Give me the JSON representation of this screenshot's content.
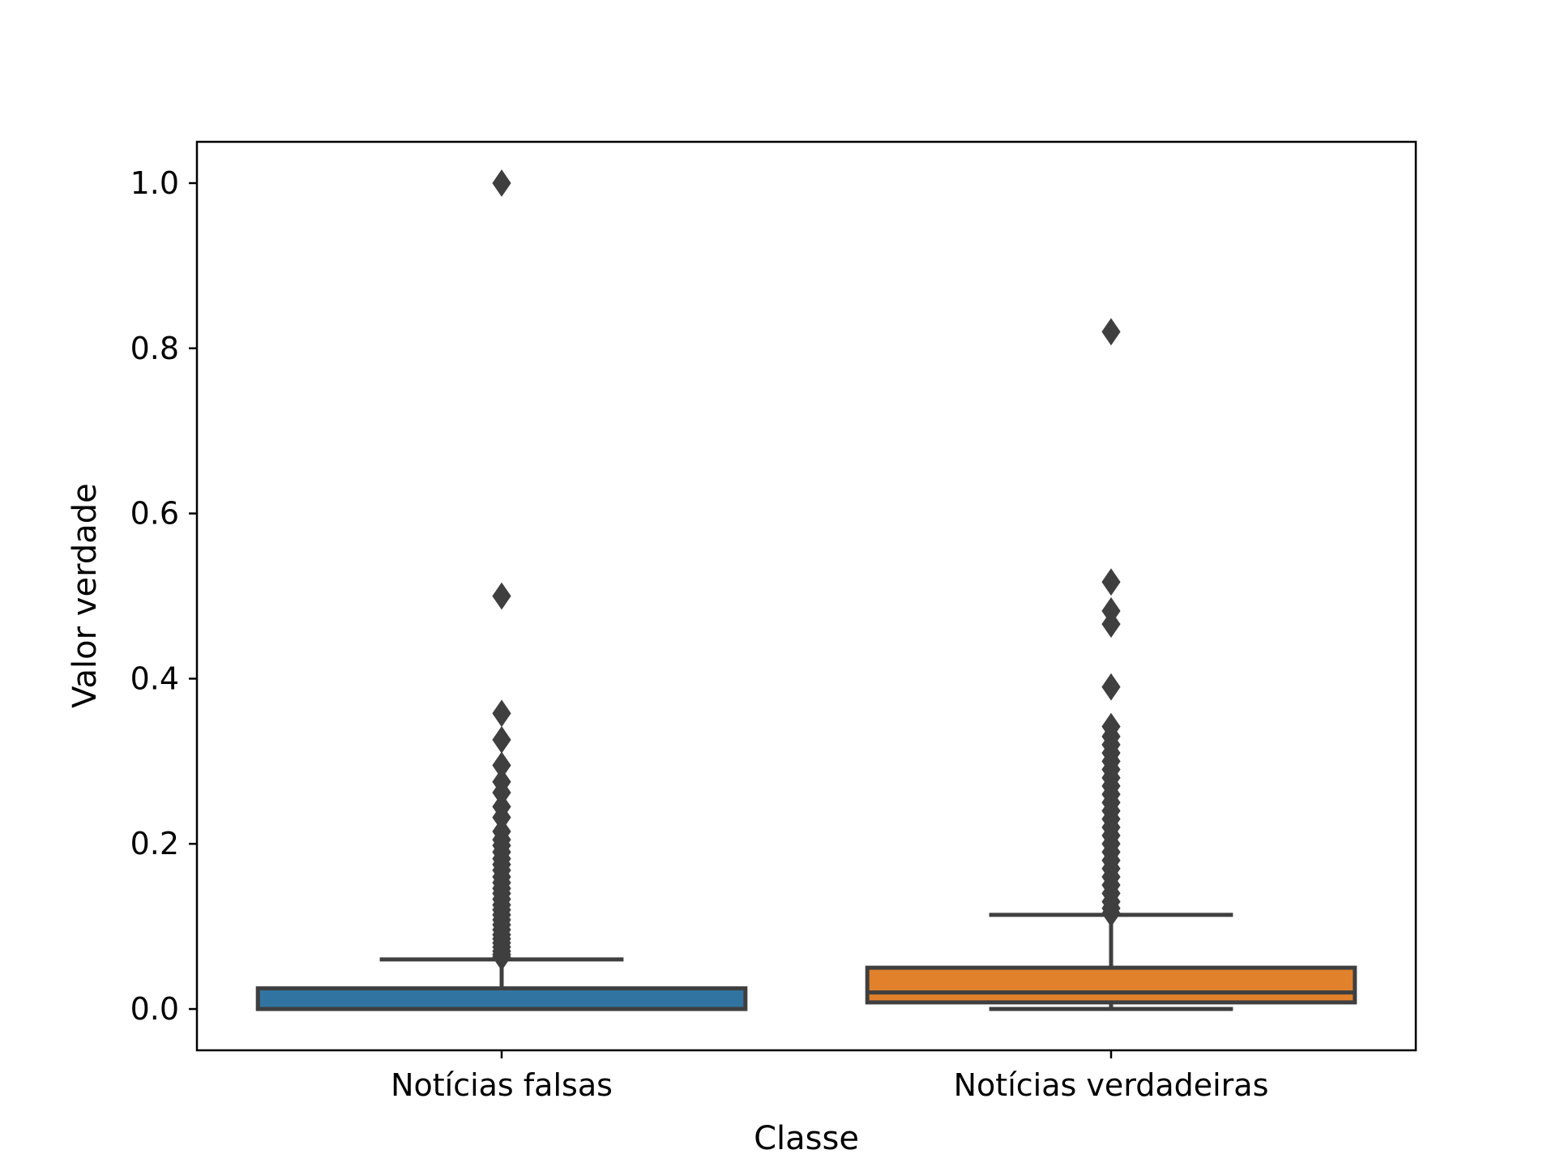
{
  "chart_data": {
    "type": "box",
    "xlabel": "Classe",
    "ylabel": "Valor verdade",
    "ylim": [
      -0.05,
      1.05
    ],
    "yticks": [
      0.0,
      0.2,
      0.4,
      0.6,
      0.8,
      1.0
    ],
    "ytick_labels": [
      "0.0",
      "0.2",
      "0.4",
      "0.6",
      "0.8",
      "1.0"
    ],
    "grid": false,
    "legend": "none",
    "categories": [
      "Notícias falsas",
      "Notícias verdadeiras"
    ],
    "boxes": [
      {
        "name": "Notícias falsas",
        "color": "#3274a1",
        "min": 0.0,
        "q1": 0.0,
        "median": 0.0,
        "q3": 0.025,
        "whisker_high": 0.06,
        "outliers": [
          1.0,
          0.5,
          0.358,
          0.326,
          0.295,
          0.275,
          0.262,
          0.245,
          0.232,
          0.215,
          0.205,
          0.198,
          0.19,
          0.182,
          0.175,
          0.168,
          0.16,
          0.153,
          0.146,
          0.14,
          0.133,
          0.126,
          0.12,
          0.114,
          0.108,
          0.102,
          0.096,
          0.09,
          0.085,
          0.08,
          0.075,
          0.07,
          0.066,
          0.063
        ]
      },
      {
        "name": "Notícias verdadeiras",
        "color": "#e1812c",
        "min": 0.0,
        "q1": 0.008,
        "median": 0.02,
        "q3": 0.05,
        "whisker_high": 0.114,
        "outliers": [
          0.82,
          0.517,
          0.482,
          0.466,
          0.39,
          0.342,
          0.33,
          0.32,
          0.31,
          0.3,
          0.29,
          0.28,
          0.27,
          0.26,
          0.25,
          0.24,
          0.23,
          0.22,
          0.21,
          0.2,
          0.19,
          0.18,
          0.17,
          0.16,
          0.15,
          0.14,
          0.13,
          0.122,
          0.116
        ]
      }
    ]
  }
}
